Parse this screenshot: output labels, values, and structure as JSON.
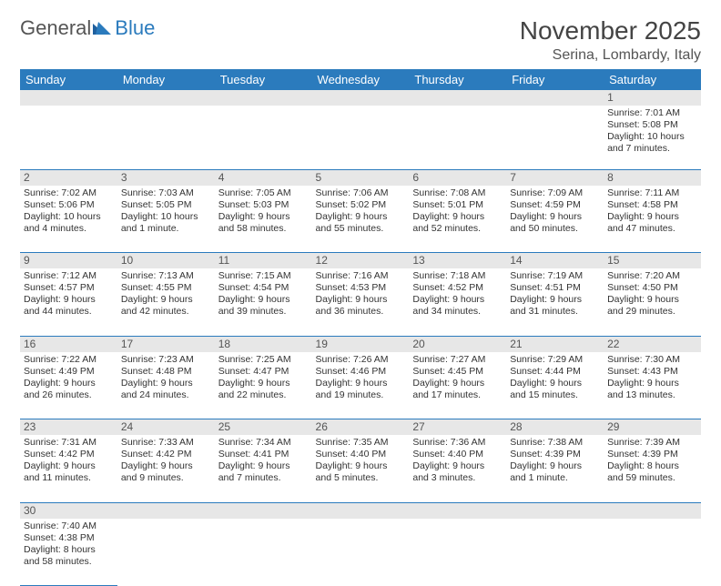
{
  "logo": {
    "part1": "General",
    "part2": "Blue"
  },
  "title": "November 2025",
  "location": "Serina, Lombardy, Italy",
  "colors": {
    "header_bg": "#2b7bbd",
    "header_fg": "#ffffff",
    "daynum_bg": "#e7e7e7",
    "rule": "#2b7bbd"
  },
  "weekdays": [
    "Sunday",
    "Monday",
    "Tuesday",
    "Wednesday",
    "Thursday",
    "Friday",
    "Saturday"
  ],
  "weeks": [
    [
      null,
      null,
      null,
      null,
      null,
      null,
      {
        "n": "1",
        "sr": "7:01 AM",
        "ss": "5:08 PM",
        "dl": "10 hours and 7 minutes."
      }
    ],
    [
      {
        "n": "2",
        "sr": "7:02 AM",
        "ss": "5:06 PM",
        "dl": "10 hours and 4 minutes."
      },
      {
        "n": "3",
        "sr": "7:03 AM",
        "ss": "5:05 PM",
        "dl": "10 hours and 1 minute."
      },
      {
        "n": "4",
        "sr": "7:05 AM",
        "ss": "5:03 PM",
        "dl": "9 hours and 58 minutes."
      },
      {
        "n": "5",
        "sr": "7:06 AM",
        "ss": "5:02 PM",
        "dl": "9 hours and 55 minutes."
      },
      {
        "n": "6",
        "sr": "7:08 AM",
        "ss": "5:01 PM",
        "dl": "9 hours and 52 minutes."
      },
      {
        "n": "7",
        "sr": "7:09 AM",
        "ss": "4:59 PM",
        "dl": "9 hours and 50 minutes."
      },
      {
        "n": "8",
        "sr": "7:11 AM",
        "ss": "4:58 PM",
        "dl": "9 hours and 47 minutes."
      }
    ],
    [
      {
        "n": "9",
        "sr": "7:12 AM",
        "ss": "4:57 PM",
        "dl": "9 hours and 44 minutes."
      },
      {
        "n": "10",
        "sr": "7:13 AM",
        "ss": "4:55 PM",
        "dl": "9 hours and 42 minutes."
      },
      {
        "n": "11",
        "sr": "7:15 AM",
        "ss": "4:54 PM",
        "dl": "9 hours and 39 minutes."
      },
      {
        "n": "12",
        "sr": "7:16 AM",
        "ss": "4:53 PM",
        "dl": "9 hours and 36 minutes."
      },
      {
        "n": "13",
        "sr": "7:18 AM",
        "ss": "4:52 PM",
        "dl": "9 hours and 34 minutes."
      },
      {
        "n": "14",
        "sr": "7:19 AM",
        "ss": "4:51 PM",
        "dl": "9 hours and 31 minutes."
      },
      {
        "n": "15",
        "sr": "7:20 AM",
        "ss": "4:50 PM",
        "dl": "9 hours and 29 minutes."
      }
    ],
    [
      {
        "n": "16",
        "sr": "7:22 AM",
        "ss": "4:49 PM",
        "dl": "9 hours and 26 minutes."
      },
      {
        "n": "17",
        "sr": "7:23 AM",
        "ss": "4:48 PM",
        "dl": "9 hours and 24 minutes."
      },
      {
        "n": "18",
        "sr": "7:25 AM",
        "ss": "4:47 PM",
        "dl": "9 hours and 22 minutes."
      },
      {
        "n": "19",
        "sr": "7:26 AM",
        "ss": "4:46 PM",
        "dl": "9 hours and 19 minutes."
      },
      {
        "n": "20",
        "sr": "7:27 AM",
        "ss": "4:45 PM",
        "dl": "9 hours and 17 minutes."
      },
      {
        "n": "21",
        "sr": "7:29 AM",
        "ss": "4:44 PM",
        "dl": "9 hours and 15 minutes."
      },
      {
        "n": "22",
        "sr": "7:30 AM",
        "ss": "4:43 PM",
        "dl": "9 hours and 13 minutes."
      }
    ],
    [
      {
        "n": "23",
        "sr": "7:31 AM",
        "ss": "4:42 PM",
        "dl": "9 hours and 11 minutes."
      },
      {
        "n": "24",
        "sr": "7:33 AM",
        "ss": "4:42 PM",
        "dl": "9 hours and 9 minutes."
      },
      {
        "n": "25",
        "sr": "7:34 AM",
        "ss": "4:41 PM",
        "dl": "9 hours and 7 minutes."
      },
      {
        "n": "26",
        "sr": "7:35 AM",
        "ss": "4:40 PM",
        "dl": "9 hours and 5 minutes."
      },
      {
        "n": "27",
        "sr": "7:36 AM",
        "ss": "4:40 PM",
        "dl": "9 hours and 3 minutes."
      },
      {
        "n": "28",
        "sr": "7:38 AM",
        "ss": "4:39 PM",
        "dl": "9 hours and 1 minute."
      },
      {
        "n": "29",
        "sr": "7:39 AM",
        "ss": "4:39 PM",
        "dl": "8 hours and 59 minutes."
      }
    ],
    [
      {
        "n": "30",
        "sr": "7:40 AM",
        "ss": "4:38 PM",
        "dl": "8 hours and 58 minutes."
      },
      null,
      null,
      null,
      null,
      null,
      null
    ]
  ],
  "labels": {
    "sunrise": "Sunrise:",
    "sunset": "Sunset:",
    "daylight": "Daylight:"
  }
}
